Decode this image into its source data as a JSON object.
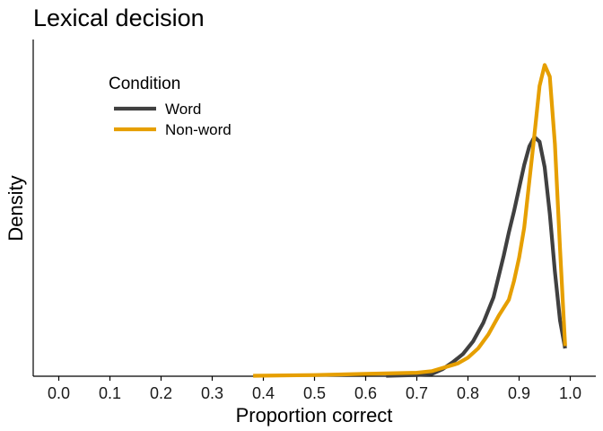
{
  "chart_data": {
    "type": "line",
    "title": "Lexical decision",
    "xlabel": "Proportion correct",
    "ylabel": "Density",
    "xlim": [
      -0.05,
      1.05
    ],
    "x_ticks": [
      "0.0",
      "0.1",
      "0.2",
      "0.3",
      "0.4",
      "0.5",
      "0.6",
      "0.7",
      "0.8",
      "0.9",
      "1.0"
    ],
    "ylim": [
      0,
      14.5
    ],
    "y_ticks_shown": false,
    "grid": false,
    "legend": {
      "title": "Condition",
      "placement": "top-left"
    },
    "series": [
      {
        "name": "Word",
        "color": "#404040",
        "points": [
          [
            0.64,
            0.02
          ],
          [
            0.7,
            0.05
          ],
          [
            0.73,
            0.1
          ],
          [
            0.75,
            0.3
          ],
          [
            0.77,
            0.6
          ],
          [
            0.79,
            0.95
          ],
          [
            0.81,
            1.5
          ],
          [
            0.83,
            2.3
          ],
          [
            0.85,
            3.4
          ],
          [
            0.87,
            5.2
          ],
          [
            0.88,
            6.2
          ],
          [
            0.89,
            7.1
          ],
          [
            0.9,
            8.1
          ],
          [
            0.91,
            9.1
          ],
          [
            0.92,
            9.9
          ],
          [
            0.93,
            10.3
          ],
          [
            0.94,
            10.1
          ],
          [
            0.95,
            9.0
          ],
          [
            0.96,
            7.0
          ],
          [
            0.97,
            4.5
          ],
          [
            0.98,
            2.4
          ],
          [
            0.99,
            1.2
          ]
        ]
      },
      {
        "name": "Non-word",
        "color": "#E69F00",
        "points": [
          [
            0.38,
            0.02
          ],
          [
            0.5,
            0.05
          ],
          [
            0.6,
            0.1
          ],
          [
            0.7,
            0.15
          ],
          [
            0.73,
            0.22
          ],
          [
            0.75,
            0.35
          ],
          [
            0.78,
            0.55
          ],
          [
            0.8,
            0.8
          ],
          [
            0.82,
            1.2
          ],
          [
            0.84,
            1.8
          ],
          [
            0.86,
            2.6
          ],
          [
            0.88,
            3.3
          ],
          [
            0.89,
            4.1
          ],
          [
            0.9,
            5.1
          ],
          [
            0.91,
            6.4
          ],
          [
            0.92,
            8.4
          ],
          [
            0.93,
            10.4
          ],
          [
            0.94,
            12.5
          ],
          [
            0.95,
            13.4
          ],
          [
            0.96,
            12.9
          ],
          [
            0.97,
            10.0
          ],
          [
            0.98,
            5.5
          ],
          [
            0.99,
            1.3
          ]
        ]
      }
    ]
  }
}
